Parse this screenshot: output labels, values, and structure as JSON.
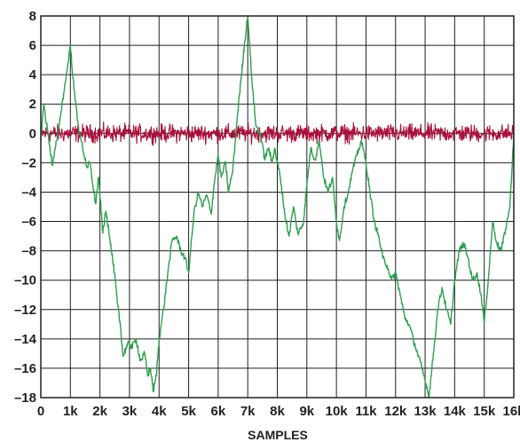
{
  "chart_data": {
    "type": "line",
    "title": "",
    "xlabel": "SAMPLES",
    "ylabel": "",
    "xlim": [
      0,
      16384
    ],
    "ylim": [
      -18,
      8
    ],
    "grid": true,
    "legend": "none",
    "x_ticks": [
      {
        "value": 0,
        "label": "0"
      },
      {
        "value": 1024,
        "label": "1k"
      },
      {
        "value": 2048,
        "label": "2k"
      },
      {
        "value": 3072,
        "label": "3k"
      },
      {
        "value": 4096,
        "label": "4k"
      },
      {
        "value": 5120,
        "label": "5k"
      },
      {
        "value": 6144,
        "label": "6k"
      },
      {
        "value": 7168,
        "label": "7k"
      },
      {
        "value": 8192,
        "label": "8k"
      },
      {
        "value": 9216,
        "label": "9k"
      },
      {
        "value": 10240,
        "label": "10k"
      },
      {
        "value": 11264,
        "label": "11k"
      },
      {
        "value": 12288,
        "label": "12k"
      },
      {
        "value": 13312,
        "label": "13k"
      },
      {
        "value": 14336,
        "label": "14k"
      },
      {
        "value": 15360,
        "label": "15k"
      },
      {
        "value": 16384,
        "label": "16k"
      }
    ],
    "y_ticks": [
      {
        "value": 8,
        "label": "8"
      },
      {
        "value": 6,
        "label": "6"
      },
      {
        "value": 4,
        "label": "4"
      },
      {
        "value": 2,
        "label": "2"
      },
      {
        "value": 0,
        "label": "0"
      },
      {
        "value": -2,
        "label": "–2"
      },
      {
        "value": -4,
        "label": "–4"
      },
      {
        "value": -6,
        "label": "–6"
      },
      {
        "value": -8,
        "label": "–8"
      },
      {
        "value": -10,
        "label": "–10"
      },
      {
        "value": -12,
        "label": "–12"
      },
      {
        "value": -14,
        "label": "–14"
      },
      {
        "value": -16,
        "label": "–16"
      },
      {
        "value": -18,
        "label": "–18"
      }
    ],
    "series": [
      {
        "color": "#2e9e4f",
        "x": [
          0,
          100,
          250,
          400,
          550,
          700,
          850,
          1024,
          1150,
          1300,
          1450,
          1600,
          1700,
          1800,
          1900,
          2000,
          2100,
          2150,
          2250,
          2350,
          2450,
          2550,
          2650,
          2750,
          2850,
          2950,
          3072,
          3150,
          3300,
          3450,
          3600,
          3700,
          3800,
          3900,
          4000,
          4096,
          4250,
          4400,
          4550,
          4700,
          4850,
          5000,
          5120,
          5300,
          5450,
          5600,
          5750,
          5900,
          6000,
          6144,
          6250,
          6400,
          6500,
          6650,
          6800,
          6950,
          7050,
          7168,
          7300,
          7450,
          7600,
          7750,
          7900,
          8000,
          8100,
          8192,
          8300,
          8450,
          8600,
          8750,
          8900,
          9000,
          9100,
          9216,
          9350,
          9500,
          9650,
          9800,
          9950,
          10100,
          10240,
          10350,
          10500,
          10650,
          10800,
          10950,
          11100,
          11264,
          11400,
          11550,
          11700,
          11850,
          12000,
          12150,
          12288,
          12450,
          12600,
          12750,
          12900,
          13050,
          13200,
          13312,
          13450,
          13600,
          13750,
          13900,
          14050,
          14200,
          14336,
          14500,
          14650,
          14800,
          14950,
          15100,
          15250,
          15360,
          15500,
          15650,
          15800,
          15950,
          16100,
          16250,
          16384
        ],
        "values": [
          -0.5,
          2.0,
          0.0,
          -2.2,
          -0.5,
          1.5,
          3.5,
          6.0,
          3.0,
          0.5,
          -1.0,
          -2.3,
          -2.0,
          -3.5,
          -4.8,
          -3.0,
          -5.5,
          -6.8,
          -5.3,
          -6.5,
          -8.0,
          -9.5,
          -11.5,
          -13.0,
          -15.2,
          -14.6,
          -14.3,
          -14.6,
          -14.0,
          -15.5,
          -15.0,
          -16.5,
          -16.0,
          -17.6,
          -16.5,
          -14.0,
          -12.0,
          -9.5,
          -7.3,
          -7.0,
          -8.0,
          -8.5,
          -9.5,
          -5.5,
          -4.0,
          -5.0,
          -4.2,
          -5.5,
          -3.5,
          -1.5,
          -3.0,
          -2.0,
          -4.0,
          -2.5,
          1.0,
          4.0,
          6.0,
          8.0,
          4.0,
          0.5,
          0.0,
          -1.7,
          -1.0,
          -2.0,
          -1.0,
          -2.0,
          -3.0,
          -5.5,
          -7.0,
          -5.0,
          -6.8,
          -6.5,
          -6.0,
          -3.5,
          -1.0,
          -1.8,
          -0.5,
          -3.0,
          -4.0,
          -3.0,
          -6.0,
          -7.3,
          -5.0,
          -4.0,
          -2.5,
          -1.5,
          -0.5,
          -2.0,
          -4.0,
          -6.0,
          -7.0,
          -8.5,
          -9.0,
          -10.0,
          -9.5,
          -11.0,
          -12.5,
          -13.0,
          -14.0,
          -15.0,
          -16.0,
          -16.8,
          -17.9,
          -15.0,
          -12.0,
          -10.5,
          -12.0,
          -13.0,
          -10.0,
          -8.0,
          -7.5,
          -8.5,
          -10.0,
          -9.5,
          -11.0,
          -12.9,
          -10.0,
          -6.0,
          -7.5,
          -8.0,
          -6.5,
          -5.0,
          0.0
        ]
      },
      {
        "color": "#a8103b",
        "values_range": [
          -0.9,
          0.9
        ]
      }
    ]
  }
}
